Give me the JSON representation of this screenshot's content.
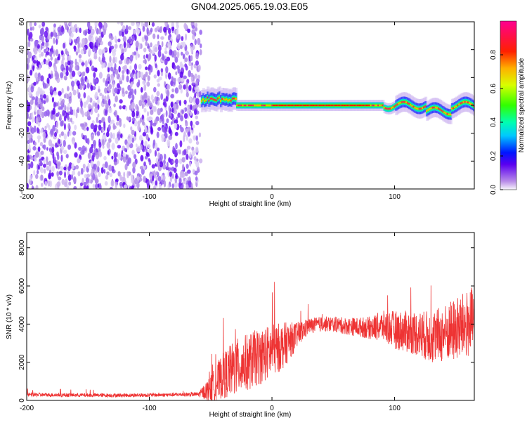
{
  "title": "GN04.2025.065.19.03.E05",
  "colors": {
    "snr_line": "#ee3333",
    "axis": "#000000",
    "background": "#ffffff"
  },
  "chart_data": [
    {
      "type": "heatmap",
      "title": "GN04.2025.065.19.03.E05",
      "xlabel": "Height of straight line (km)",
      "ylabel": "Frequency (Hz)",
      "xlim": [
        -200,
        165
      ],
      "ylim": [
        -60,
        60
      ],
      "x_ticks": [
        -200,
        -100,
        0,
        100
      ],
      "y_ticks": [
        -60,
        -40,
        -20,
        0,
        20,
        40,
        60
      ],
      "colorbar": {
        "label": "Normalized spectral amplitude",
        "range": [
          0,
          1
        ],
        "ticks": [
          "0.0",
          "0.2",
          "0.4",
          "0.6",
          "0.8"
        ],
        "colormap": "rainbow (violet-blue-cyan-green-yellow-red-magenta)"
      },
      "regions": [
        {
          "description": "broadband low-amplitude noise",
          "x_range": [
            -200,
            -58
          ],
          "y_range": [
            -60,
            60
          ],
          "amplitude": 0.05
        },
        {
          "description": "narrow carrier line near 0 Hz",
          "x_range": [
            -58,
            165
          ],
          "center_freq": 0,
          "amplitude": 1.0
        }
      ]
    },
    {
      "type": "line",
      "xlabel": "Height of straight line (km)",
      "ylabel": "SNR (10 * v/v)",
      "xlim": [
        -200,
        165
      ],
      "ylim": [
        0,
        8800
      ],
      "x_ticks": [
        -200,
        -100,
        0,
        100
      ],
      "y_ticks": [
        0,
        2000,
        4000,
        6000,
        8000
      ],
      "series": [
        {
          "points": [
            [
              -200,
              300
            ],
            [
              -180,
              290
            ],
            [
              -160,
              280
            ],
            [
              -140,
              270
            ],
            [
              -120,
              270
            ],
            [
              -100,
              280
            ],
            [
              -80,
              300
            ],
            [
              -60,
              320
            ],
            [
              -50,
              600
            ],
            [
              -40,
              1300
            ],
            [
              -30,
              1700
            ],
            [
              -20,
              2000
            ],
            [
              -10,
              2300
            ],
            [
              0,
              2600
            ],
            [
              10,
              2900
            ],
            [
              20,
              3400
            ],
            [
              30,
              3900
            ],
            [
              40,
              4000
            ],
            [
              50,
              4000
            ],
            [
              60,
              3900
            ],
            [
              70,
              3850
            ],
            [
              80,
              3800
            ],
            [
              90,
              3900
            ],
            [
              100,
              3700
            ],
            [
              110,
              3600
            ],
            [
              120,
              3500
            ],
            [
              130,
              3300
            ],
            [
              140,
              3500
            ],
            [
              150,
              3700
            ],
            [
              160,
              4000
            ],
            [
              165,
              4200
            ]
          ],
          "spread": [
            100,
            100,
            100,
            100,
            100,
            100,
            100,
            120,
            700,
            1200,
            1500,
            1500,
            1500,
            1400,
            1200,
            700,
            400,
            400,
            400,
            450,
            500,
            600,
            800,
            1000,
            1100,
            1200,
            1400,
            1500,
            1700,
            1800,
            1800
          ]
        }
      ]
    }
  ]
}
